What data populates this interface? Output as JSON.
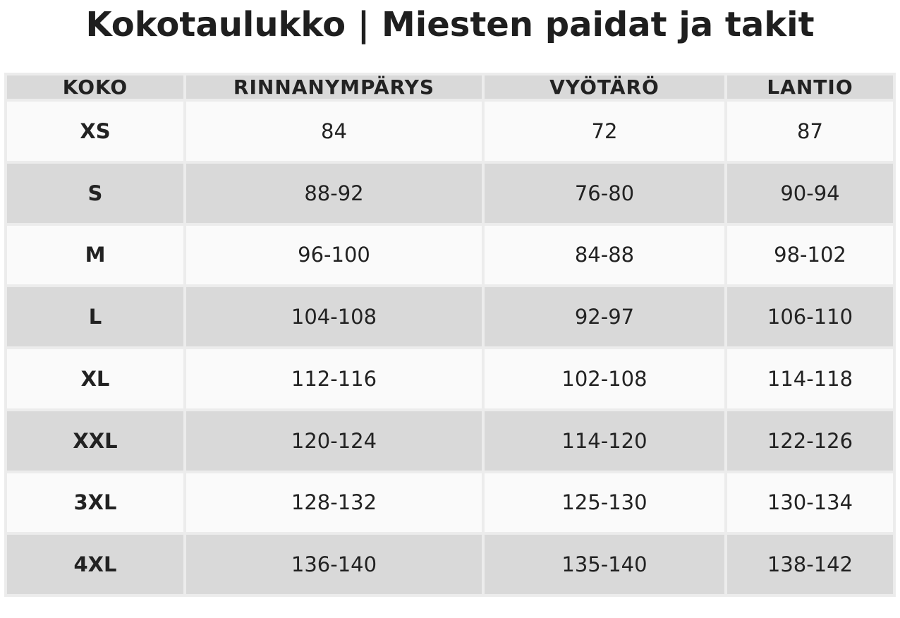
{
  "title": "Kokotaulukko | Miesten paidat ja takit",
  "table": {
    "headers": [
      "KOKO",
      "RINNANYMPÄRYS",
      "VYÖTÄRÖ",
      "LANTIO"
    ],
    "rows": [
      [
        "XS",
        "84",
        "72",
        "87"
      ],
      [
        "S",
        "88-92",
        "76-80",
        "90-94"
      ],
      [
        "M",
        "96-100",
        "84-88",
        "98-102"
      ],
      [
        "L",
        "104-108",
        "92-97",
        "106-110"
      ],
      [
        "XL",
        "112-116",
        "102-108",
        "114-118"
      ],
      [
        "XXL",
        "120-124",
        "114-120",
        "122-126"
      ],
      [
        "3XL",
        "128-132",
        "125-130",
        "130-134"
      ],
      [
        "4XL",
        "136-140",
        "135-140",
        "138-142"
      ]
    ]
  },
  "colors": {
    "header_bg": "#d9d9d9",
    "row_light": "#fafafa",
    "row_dark": "#d9d9d9",
    "grid": "#ececec",
    "text": "#222222"
  }
}
